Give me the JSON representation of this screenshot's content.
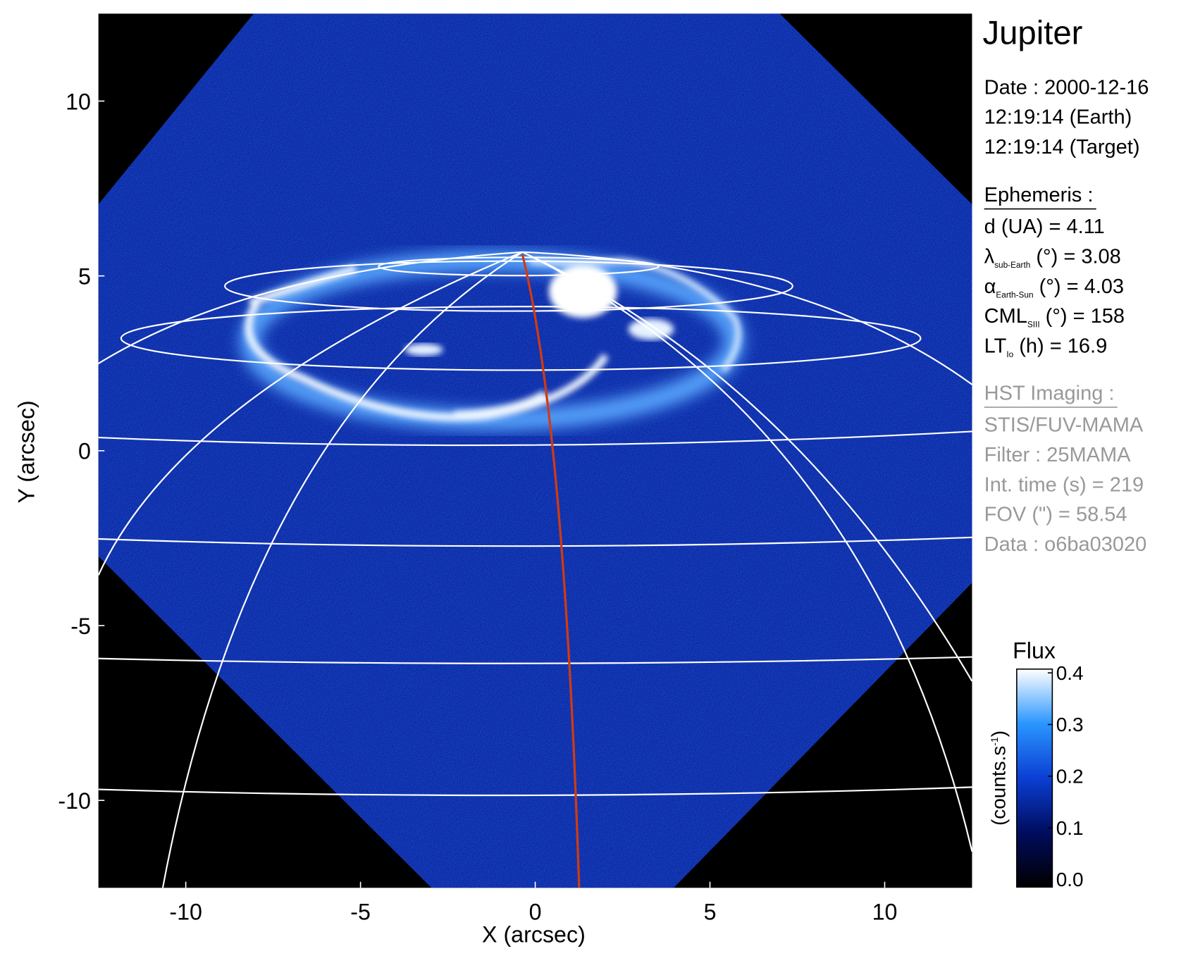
{
  "chart_data": {
    "type": "image",
    "title": "Jupiter",
    "xlabel": "X (arcsec)",
    "ylabel": "Y (arcsec)",
    "xlim": [
      -12.5,
      12.5
    ],
    "ylim": [
      -12.5,
      12.5
    ],
    "xticks": [
      -10,
      -5,
      0,
      5,
      10
    ],
    "yticks": [
      -10,
      -5,
      0,
      5,
      10
    ],
    "info": {
      "date": [
        "Date : 2000-12-16",
        "12:19:14 (Earth)",
        "12:19:14 (Target)"
      ],
      "ephemeris": {
        "heading": "Ephemeris :",
        "lines": [
          [
            "d (UA)    = 4.11"
          ],
          [
            "λ",
            "sub-Earth",
            " (°) = 3.08"
          ],
          [
            "α",
            "Earth-Sun",
            " (°) = 4.03"
          ],
          [
            "CML",
            "SIII",
            " (°) = 158"
          ],
          [
            "LT",
            "Io",
            " (h) = 16.9"
          ]
        ]
      },
      "imaging": {
        "heading": "HST Imaging :",
        "lines": [
          "STIS/FUV-MAMA",
          "Filter : 25MAMA",
          "Int. time (s) = 219",
          "FOV (\") = 58.54",
          "Data : o6ba03020"
        ]
      }
    },
    "colorbar": {
      "label": "Flux",
      "unit": [
        "(counts.s",
        "-1",
        ")"
      ],
      "clim": [
        0,
        0.4
      ],
      "ticks": [
        {
          "value": 0,
          "label": "0.0"
        },
        0.1,
        0.2,
        0.3,
        0.4
      ],
      "colormap": [
        "#000000",
        "#000c5e",
        "#0b3fd4",
        "#2a96ff",
        "#ffffff"
      ]
    }
  }
}
